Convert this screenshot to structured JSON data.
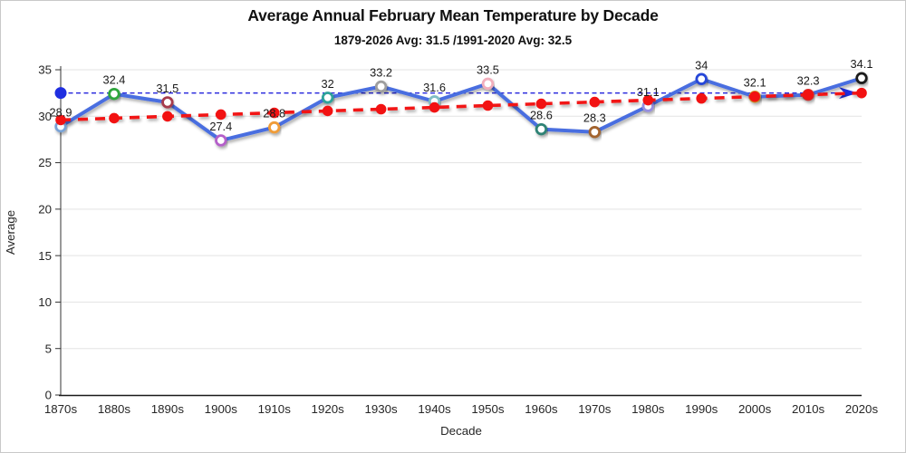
{
  "frame": {
    "background": "#ffffff",
    "border_color": "#c9c9c9"
  },
  "chart_data": {
    "type": "line",
    "title": "Average Annual February Mean Temperature by Decade",
    "subtitle": "1879-2026 Avg: 31.5 /1991-2020 Avg: 32.5",
    "xlabel": "Decade",
    "ylabel": "Average",
    "ylim": [
      0,
      35
    ],
    "yticks": [
      0,
      5,
      10,
      15,
      20,
      25,
      30,
      35
    ],
    "grid": true,
    "legend": "none",
    "categories": [
      "1870s",
      "1880s",
      "1890s",
      "1900s",
      "1910s",
      "1920s",
      "1930s",
      "1940s",
      "1950s",
      "1960s",
      "1970s",
      "1980s",
      "1990s",
      "2000s",
      "2010s",
      "2020s"
    ],
    "series": [
      {
        "name": "decade-mean-temperature",
        "type": "line",
        "line_color": "#4a6ee0",
        "line_width": 4,
        "values": [
          28.9,
          32.4,
          31.5,
          27.4,
          28.8,
          32,
          33.2,
          31.6,
          33.5,
          28.6,
          28.3,
          31.1,
          34,
          32.1,
          32.3,
          34.1
        ],
        "point_labels": [
          "28.9",
          "32.4",
          "31.5",
          "27.4",
          "28.8",
          "32",
          "33.2",
          "31.6",
          "33.5",
          "28.6",
          "28.3",
          "31.1",
          "34",
          "32.1",
          "32.3",
          "34.1"
        ],
        "marker_fill": "#ffffff",
        "marker_edge_colors": [
          "#7aa3d6",
          "#2ea53c",
          "#a63a4d",
          "#b45fc9",
          "#f09c38",
          "#2fa39a",
          "#9e9e9e",
          "#7fbdc4",
          "#f2aebc",
          "#2e8274",
          "#a2642f",
          "#968ee0",
          "#2646d8",
          "#d0a02a",
          "#d23a3a",
          "#1a1a1a"
        ]
      },
      {
        "name": "linear-trend",
        "type": "dashed-line",
        "line_color": "#f21212",
        "marker_color": "#f21212",
        "values": [
          29.6,
          29.79,
          29.99,
          30.18,
          30.37,
          30.57,
          30.76,
          30.95,
          31.15,
          31.34,
          31.53,
          31.73,
          31.92,
          32.11,
          32.31,
          32.5
        ]
      },
      {
        "name": "avg-1991-2020-reference",
        "type": "reference-line",
        "line_color": "#2323dd",
        "value": 32.5,
        "start_marker": "dot",
        "end_marker": "arrow"
      }
    ]
  }
}
